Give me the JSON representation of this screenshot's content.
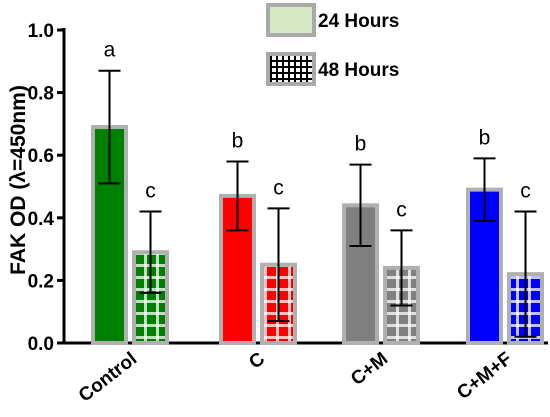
{
  "chart_data": {
    "type": "bar",
    "ylabel": "FAK OD (λ=450nm)",
    "xlabel": "",
    "ylim": [
      0,
      1.0
    ],
    "yticks": [
      "0.0",
      "0.2",
      "0.4",
      "0.6",
      "0.8",
      "1.0"
    ],
    "categories": [
      "Control",
      "C",
      "C+M",
      "C+M+F"
    ],
    "series": [
      {
        "name": "24 Hours",
        "values": [
          0.69,
          0.47,
          0.44,
          0.49
        ],
        "error": [
          0.18,
          0.11,
          0.13,
          0.1
        ],
        "labels": [
          "a",
          "b",
          "b",
          "b"
        ]
      },
      {
        "name": "48 Hours",
        "values": [
          0.29,
          0.25,
          0.24,
          0.22
        ],
        "error": [
          0.13,
          0.18,
          0.12,
          0.2
        ],
        "labels": [
          "c",
          "c",
          "c",
          "c"
        ]
      }
    ],
    "bar_colors": [
      "#008000",
      "#ff0000",
      "#808080",
      "#0000ff"
    ],
    "legend_position": "top-right",
    "grid": false
  }
}
